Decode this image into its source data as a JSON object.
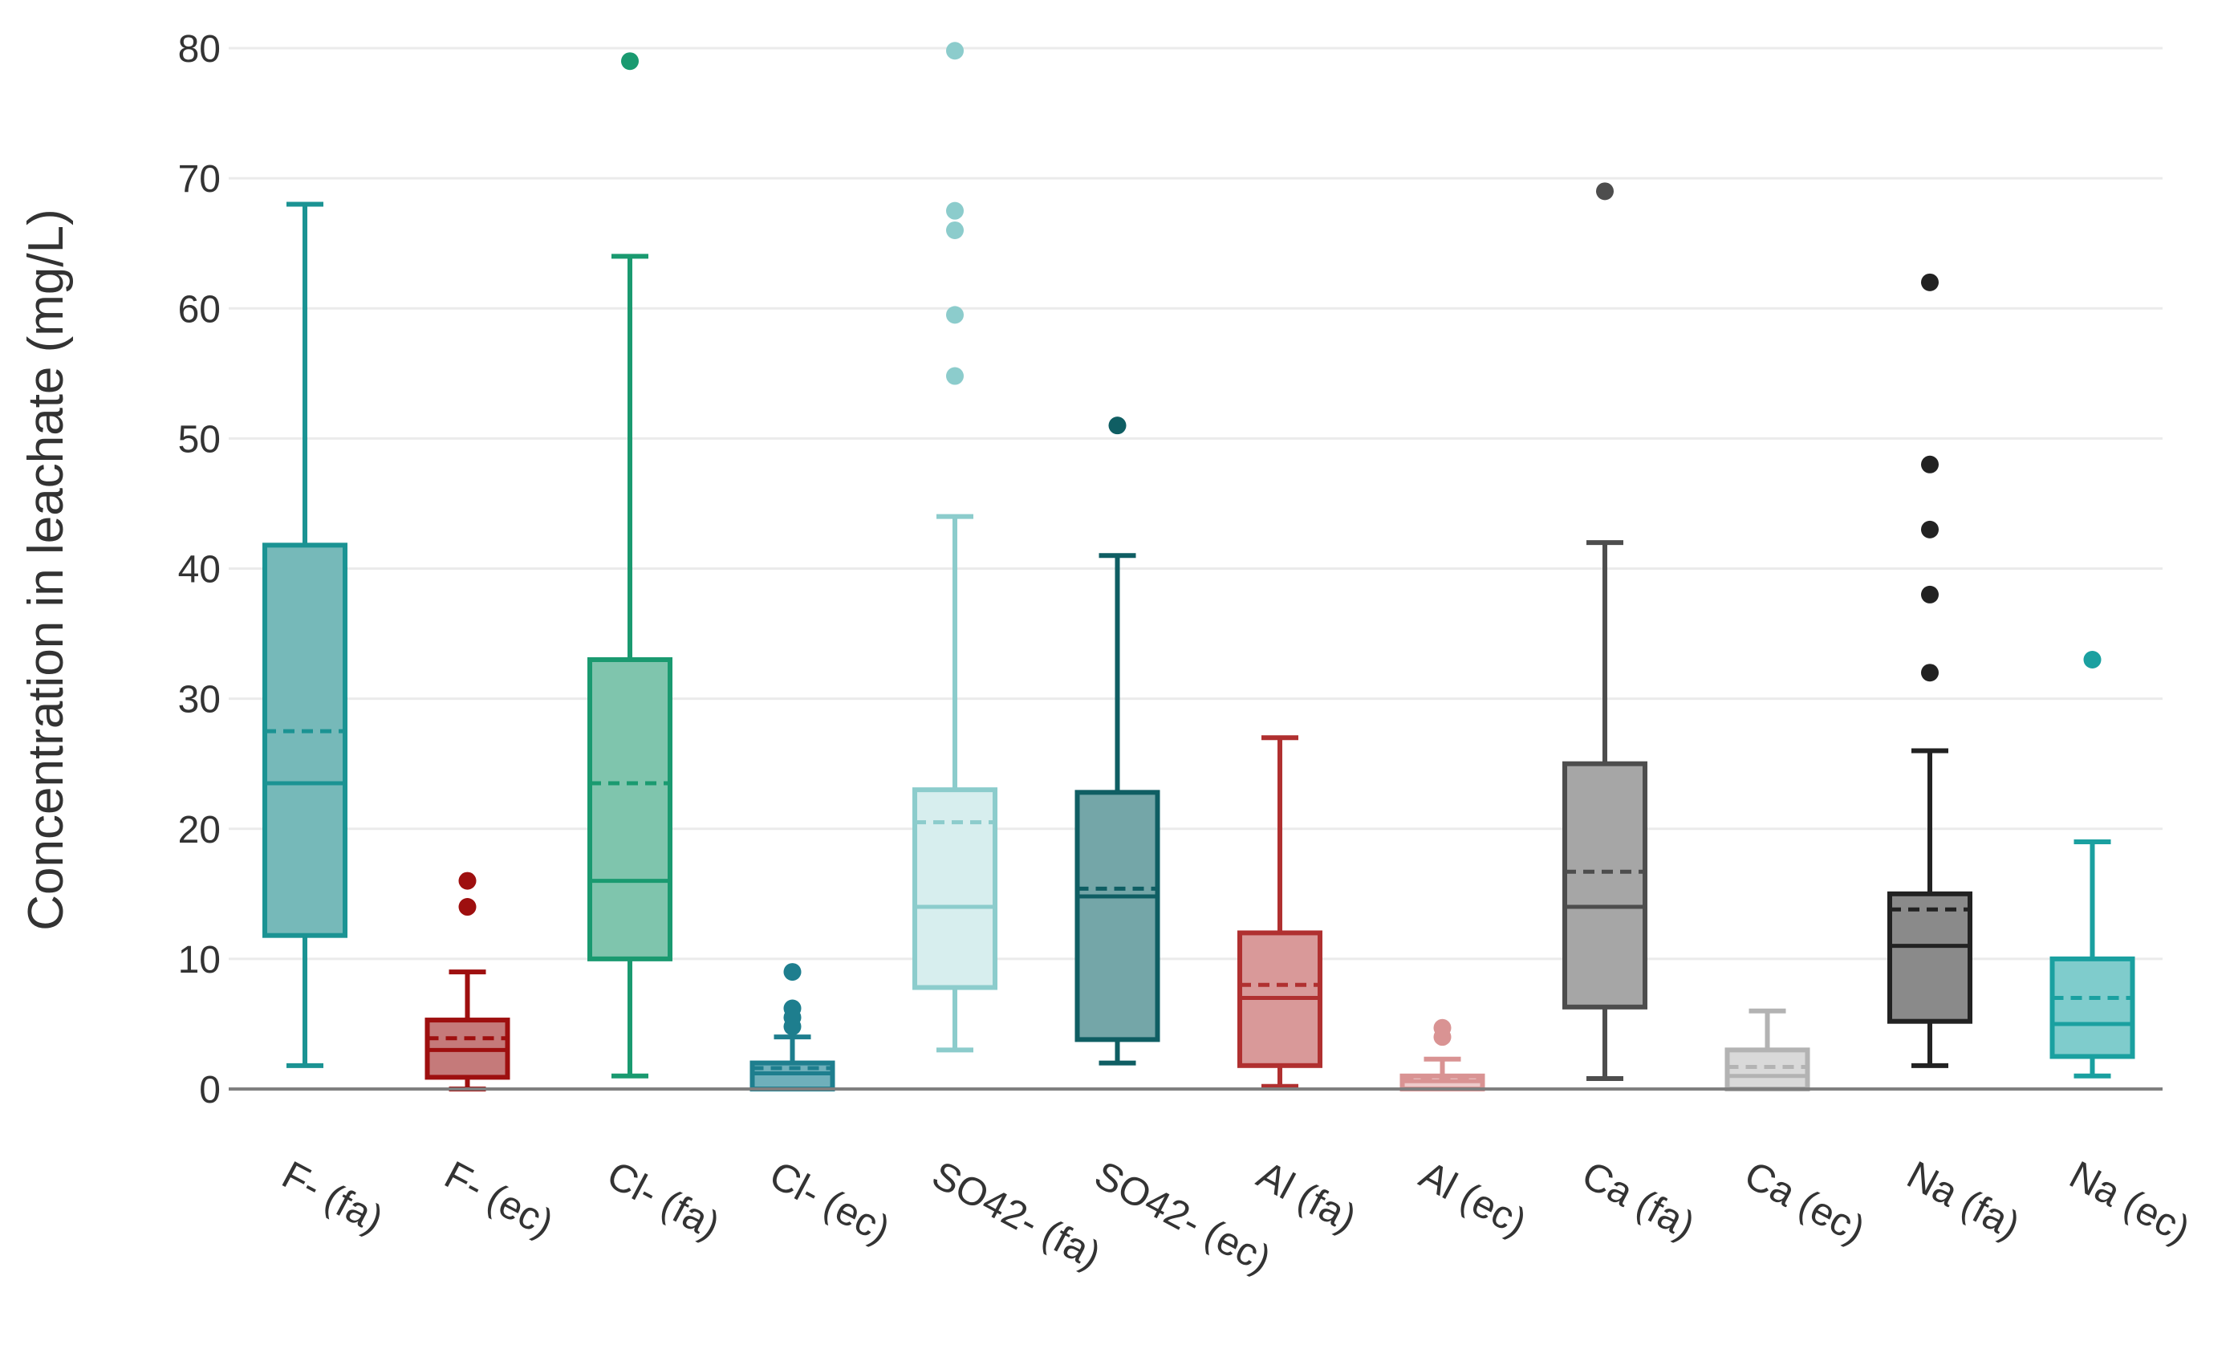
{
  "chart_data": {
    "type": "boxplot",
    "title": "",
    "xlabel": "",
    "ylabel": "Concentration in leachate (mg/L)",
    "ylim": [
      0,
      80
    ],
    "yticks": [
      0,
      10,
      20,
      30,
      40,
      50,
      60,
      70,
      80
    ],
    "grid": true,
    "legend": "none",
    "categories": [
      "F- (fa)",
      "F- (ec)",
      "Cl- (fa)",
      "Cl- (ec)",
      "SO42- (fa)",
      "SO42- (ec)",
      "Al (fa)",
      "Al (ec)",
      "Ca (fa)",
      "Ca (ec)",
      "Na (fa)",
      "Na (ec)"
    ],
    "boxes": [
      {
        "name": "F- (fa)",
        "color": "#1b9393",
        "fill": "#76b9b9",
        "whisker_low": 1.8,
        "q1": 11.8,
        "median": 23.5,
        "mean": 27.5,
        "q3": 41.8,
        "whisker_high": 68,
        "outliers": []
      },
      {
        "name": "F- (ec)",
        "color": "#9e0f0f",
        "fill": "#c57a7a",
        "whisker_low": 0,
        "q1": 0.9,
        "median": 3.0,
        "mean": 3.9,
        "q3": 5.3,
        "whisker_high": 9,
        "outliers": [
          14,
          16
        ]
      },
      {
        "name": "Cl- (fa)",
        "color": "#1a9a70",
        "fill": "#7fc5ad",
        "whisker_low": 1.0,
        "q1": 10.0,
        "median": 16.0,
        "mean": 23.5,
        "q3": 33.0,
        "whisker_high": 64,
        "outliers": [
          79
        ]
      },
      {
        "name": "Cl- (ec)",
        "color": "#1e7e8e",
        "fill": "#6fb0bb",
        "whisker_low": 0,
        "q1": 0,
        "median": 1.2,
        "mean": 1.6,
        "q3": 2.0,
        "whisker_high": 4,
        "outliers": [
          4.8,
          5.5,
          6.2,
          9
        ]
      },
      {
        "name": "SO42- (fa)",
        "color": "#8ccccc",
        "fill": "#d7eeee",
        "whisker_low": 3.0,
        "q1": 7.8,
        "median": 14.0,
        "mean": 20.5,
        "q3": 23.0,
        "whisker_high": 44,
        "outliers": [
          54.8,
          59.5,
          66,
          67.5,
          79.8
        ]
      },
      {
        "name": "SO42- (ec)",
        "color": "#0f5e63",
        "fill": "#74a6a8",
        "whisker_low": 2.0,
        "q1": 3.8,
        "median": 14.8,
        "mean": 15.4,
        "q3": 22.8,
        "whisker_high": 41,
        "outliers": [
          51
        ]
      },
      {
        "name": "Al (fa)",
        "color": "#b03030",
        "fill": "#d99999",
        "whisker_low": 0.2,
        "q1": 1.8,
        "median": 7.0,
        "mean": 8.0,
        "q3": 12.0,
        "whisker_high": 27,
        "outliers": []
      },
      {
        "name": "Al (ec)",
        "color": "#d99393",
        "fill": "#edc9c9",
        "whisker_low": 0,
        "q1": 0,
        "median": 0.6,
        "mean": 0.8,
        "q3": 1.0,
        "whisker_high": 2.3,
        "outliers": [
          4.0,
          4.7
        ]
      },
      {
        "name": "Ca (fa)",
        "color": "#4d4d4d",
        "fill": "#a6a6a6",
        "whisker_low": 0.8,
        "q1": 6.3,
        "median": 14.0,
        "mean": 16.7,
        "q3": 25.0,
        "whisker_high": 42,
        "outliers": [
          69
        ]
      },
      {
        "name": "Ca (ec)",
        "color": "#b3b3b3",
        "fill": "#d9d9d9",
        "whisker_low": 0,
        "q1": 0,
        "median": 1.0,
        "mean": 1.7,
        "q3": 3.0,
        "whisker_high": 6.0,
        "outliers": []
      },
      {
        "name": "Na (fa)",
        "color": "#222222",
        "fill": "#8a8a8a",
        "whisker_low": 1.8,
        "q1": 5.2,
        "median": 11.0,
        "mean": 13.8,
        "q3": 15.0,
        "whisker_high": 26,
        "outliers": [
          32,
          38,
          43,
          48,
          62
        ]
      },
      {
        "name": "Na (ec)",
        "color": "#1aa0a0",
        "fill": "#7fcccc",
        "whisker_low": 1.0,
        "q1": 2.5,
        "median": 5.0,
        "mean": 7.0,
        "q3": 10.0,
        "whisker_high": 19,
        "outliers": [
          33
        ]
      }
    ]
  }
}
